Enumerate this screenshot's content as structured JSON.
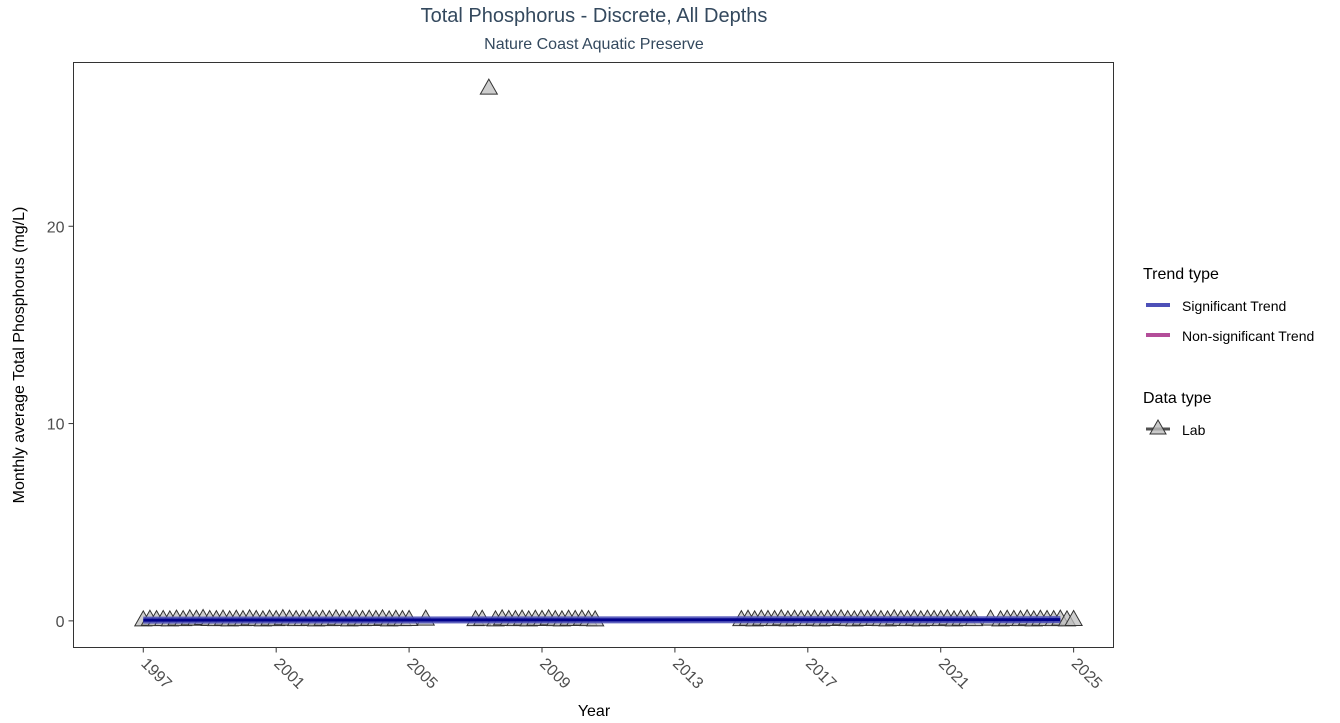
{
  "chart_data": {
    "type": "scatter",
    "title": "Total Phosphorus - Discrete, All Depths",
    "subtitle": "Nature Coast Aquatic Preserve",
    "xlabel": "Year",
    "ylabel": "Monthly average Total Phosphorus (mg/L)",
    "xlim": [
      1994.9,
      2026.2
    ],
    "ylim": [
      -1.35,
      28.3
    ],
    "x_ticks": [
      1997,
      2001,
      2005,
      2009,
      2013,
      2017,
      2021,
      2025
    ],
    "y_ticks": [
      0,
      10,
      20
    ],
    "grid": false,
    "legend_position": "right",
    "legend": {
      "trend_title": "Trend type",
      "trend_items": [
        {
          "label": "Significant Trend",
          "color": "#4d50b8"
        },
        {
          "label": "Non-significant Trend",
          "color": "#b34d99"
        }
      ],
      "data_title": "Data type",
      "data_items": [
        {
          "label": "Lab",
          "marker": "triangle-icon"
        }
      ]
    },
    "series": [
      {
        "name": "Lab",
        "marker": "triangle",
        "fill": "#bdbdbd",
        "stroke": "#333333",
        "points": [
          [
            1997.0,
            0.05
          ],
          [
            1997.2,
            0.08
          ],
          [
            1997.4,
            0.06
          ],
          [
            1997.6,
            0.07
          ],
          [
            1997.8,
            0.05
          ],
          [
            1998.0,
            0.09
          ],
          [
            1998.2,
            0.06
          ],
          [
            1998.4,
            0.1
          ],
          [
            1998.6,
            0.08
          ],
          [
            1998.8,
            0.12
          ],
          [
            1999.0,
            0.07
          ],
          [
            1999.2,
            0.06
          ],
          [
            1999.4,
            0.09
          ],
          [
            1999.6,
            0.05
          ],
          [
            1999.8,
            0.08
          ],
          [
            2000.0,
            0.06
          ],
          [
            2000.2,
            0.1
          ],
          [
            2000.4,
            0.07
          ],
          [
            2000.6,
            0.05
          ],
          [
            2000.8,
            0.09
          ],
          [
            2001.0,
            0.06
          ],
          [
            2001.2,
            0.11
          ],
          [
            2001.4,
            0.08
          ],
          [
            2001.6,
            0.06
          ],
          [
            2001.8,
            0.07
          ],
          [
            2002.0,
            0.09
          ],
          [
            2002.2,
            0.05
          ],
          [
            2002.4,
            0.08
          ],
          [
            2002.6,
            0.06
          ],
          [
            2002.8,
            0.1
          ],
          [
            2003.0,
            0.07
          ],
          [
            2003.2,
            0.05
          ],
          [
            2003.4,
            0.09
          ],
          [
            2003.6,
            0.06
          ],
          [
            2003.8,
            0.08
          ],
          [
            2004.0,
            0.07
          ],
          [
            2004.2,
            0.1
          ],
          [
            2004.4,
            0.05
          ],
          [
            2004.6,
            0.08
          ],
          [
            2004.8,
            0.06
          ],
          [
            2005.0,
            0.07
          ],
          [
            2005.5,
            0.09
          ],
          [
            2007.0,
            0.06
          ],
          [
            2007.2,
            0.08
          ],
          [
            2007.4,
            27.0
          ],
          [
            2007.6,
            0.05
          ],
          [
            2007.8,
            0.1
          ],
          [
            2008.0,
            0.07
          ],
          [
            2008.2,
            0.06
          ],
          [
            2008.4,
            0.09
          ],
          [
            2008.6,
            0.05
          ],
          [
            2008.8,
            0.08
          ],
          [
            2009.0,
            0.07
          ],
          [
            2009.2,
            0.1
          ],
          [
            2009.4,
            0.06
          ],
          [
            2009.6,
            0.05
          ],
          [
            2009.8,
            0.08
          ],
          [
            2010.0,
            0.07
          ],
          [
            2010.2,
            0.09
          ],
          [
            2010.4,
            0.06
          ],
          [
            2010.6,
            0.05
          ],
          [
            2015.0,
            0.06
          ],
          [
            2015.2,
            0.08
          ],
          [
            2015.4,
            0.05
          ],
          [
            2015.6,
            0.09
          ],
          [
            2015.8,
            0.07
          ],
          [
            2016.0,
            0.06
          ],
          [
            2016.2,
            0.1
          ],
          [
            2016.4,
            0.05
          ],
          [
            2016.6,
            0.08
          ],
          [
            2016.8,
            0.07
          ],
          [
            2017.0,
            0.06
          ],
          [
            2017.2,
            0.09
          ],
          [
            2017.4,
            0.05
          ],
          [
            2017.6,
            0.08
          ],
          [
            2017.8,
            0.07
          ],
          [
            2018.0,
            0.1
          ],
          [
            2018.2,
            0.06
          ],
          [
            2018.4,
            0.05
          ],
          [
            2018.6,
            0.09
          ],
          [
            2018.8,
            0.07
          ],
          [
            2019.0,
            0.08
          ],
          [
            2019.2,
            0.06
          ],
          [
            2019.4,
            0.05
          ],
          [
            2019.6,
            0.1
          ],
          [
            2019.8,
            0.07
          ],
          [
            2020.0,
            0.06
          ],
          [
            2020.2,
            0.09
          ],
          [
            2020.4,
            0.05
          ],
          [
            2020.6,
            0.08
          ],
          [
            2020.8,
            0.07
          ],
          [
            2021.0,
            0.06
          ],
          [
            2021.2,
            0.1
          ],
          [
            2021.4,
            0.05
          ],
          [
            2021.6,
            0.08
          ],
          [
            2021.8,
            0.07
          ],
          [
            2022.0,
            0.06
          ],
          [
            2022.5,
            0.09
          ],
          [
            2022.8,
            0.05
          ],
          [
            2023.0,
            0.08
          ],
          [
            2023.2,
            0.07
          ],
          [
            2023.4,
            0.06
          ],
          [
            2023.6,
            0.1
          ],
          [
            2023.8,
            0.05
          ],
          [
            2024.0,
            0.08
          ],
          [
            2024.2,
            0.07
          ],
          [
            2024.4,
            0.06
          ],
          [
            2024.6,
            0.09
          ],
          [
            2024.8,
            0.05
          ],
          [
            2025.0,
            0.07
          ]
        ]
      }
    ],
    "trend": {
      "name": "Significant Trend",
      "color": "#00008b",
      "x": [
        1997.0,
        2024.6
      ],
      "y": [
        0.04,
        0.06
      ]
    }
  }
}
